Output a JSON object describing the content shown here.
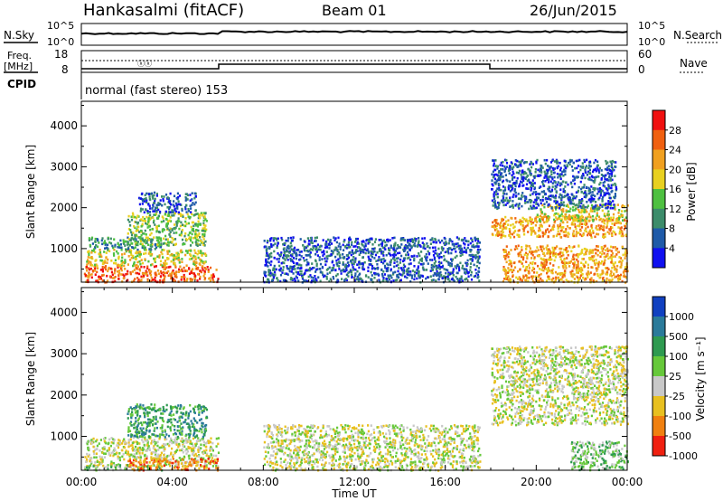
{
  "header": {
    "station": "Hankasalmi (fitACF)",
    "beam": "Beam 01",
    "date": "26/Jun/2015"
  },
  "panels": {
    "nsky": {
      "label_left": "N.Sky",
      "label_right": "N.Search",
      "tick_top": "10^5",
      "tick_bottom": "10^0"
    },
    "freq": {
      "label_line1": "Freq.",
      "label_line2": "[MHz]",
      "tick_top": "18",
      "tick_bottom": "8",
      "right_tick_top": "60",
      "right_tick_bottom": "0",
      "label_right": "Nave"
    },
    "cpid": {
      "label": "CPID",
      "text": "normal (fast stereo) 153"
    }
  },
  "chart_data": [
    {
      "type": "heatmap",
      "name": "power",
      "ylabel": "Slant Range [km]",
      "ylim": [
        180,
        4600
      ],
      "yticks": [
        "1000",
        "2000",
        "3000",
        "4000"
      ],
      "colorbar_label": "Power [dB]",
      "colorbar_ticks": [
        "4",
        "8",
        "12",
        "16",
        "20",
        "24",
        "28"
      ],
      "colors": [
        "#1010f0",
        "#1e5aa8",
        "#3c8c6a",
        "#4ec040",
        "#e8d020",
        "#f0a020",
        "#f06010",
        "#f01010"
      ],
      "regions": [
        {
          "t0": 0.1,
          "t1": 6.0,
          "r0": 200,
          "r1": 600,
          "level": 6
        },
        {
          "t0": 0.2,
          "t1": 5.5,
          "r0": 600,
          "r1": 1000,
          "level": 4
        },
        {
          "t0": 0.3,
          "t1": 3.5,
          "r0": 1000,
          "r1": 1300,
          "level": 2
        },
        {
          "t0": 2.0,
          "t1": 5.5,
          "r0": 1100,
          "r1": 1900,
          "level": 3
        },
        {
          "t0": 2.5,
          "t1": 5.0,
          "r0": 1900,
          "r1": 2400,
          "level": 1
        },
        {
          "t0": 18.0,
          "t1": 24.0,
          "r0": 1300,
          "r1": 1800,
          "level": 5
        },
        {
          "t0": 20.0,
          "t1": 24.0,
          "r0": 1700,
          "r1": 2100,
          "level": 4
        },
        {
          "t0": 18.0,
          "t1": 23.5,
          "r0": 2000,
          "r1": 3200,
          "level": 1
        },
        {
          "t0": 18.5,
          "t1": 24.0,
          "r0": 200,
          "r1": 1100,
          "level": 5
        },
        {
          "t0": 8.0,
          "t1": 17.5,
          "r0": 200,
          "r1": 1300,
          "level": 1
        }
      ]
    },
    {
      "type": "heatmap",
      "name": "velocity",
      "ylabel": "Slant Range [km]",
      "ylim": [
        180,
        4600
      ],
      "yticks": [
        "1000",
        "2000",
        "3000",
        "4000"
      ],
      "colorbar_label": "Velocity [m s⁻¹]",
      "colorbar_ticks": [
        "1000",
        "500",
        "100",
        "25",
        "-25",
        "-100",
        "-500",
        "-1000"
      ],
      "colors": [
        "#1040c0",
        "#2a7a9a",
        "#2e9a50",
        "#66c83a",
        "#c8c8c8",
        "#e8c020",
        "#f08010",
        "#f02010"
      ],
      "regions": [
        {
          "t0": 0.1,
          "t1": 6.0,
          "r0": 300,
          "r1": 1000,
          "level": 4
        },
        {
          "t0": 0.1,
          "t1": 3.5,
          "r0": 200,
          "r1": 350,
          "level": 3
        },
        {
          "t0": 2.0,
          "t1": 5.5,
          "r0": 1000,
          "r1": 1800,
          "level": 2
        },
        {
          "t0": 2.0,
          "t1": 6.0,
          "r0": 200,
          "r1": 500,
          "level": 6
        },
        {
          "t0": 18.0,
          "t1": 24.0,
          "r0": 1300,
          "r1": 3200,
          "level": 4
        },
        {
          "t0": 21.5,
          "t1": 24.0,
          "r0": 200,
          "r1": 900,
          "level": 3
        },
        {
          "t0": 8.0,
          "t1": 17.5,
          "r0": 200,
          "r1": 1300,
          "level": 4
        }
      ]
    }
  ],
  "time_axis": {
    "label": "Time UT",
    "ticks": [
      "00:00",
      "04:00",
      "08:00",
      "12:00",
      "16:00",
      "20:00",
      "00:00"
    ]
  }
}
